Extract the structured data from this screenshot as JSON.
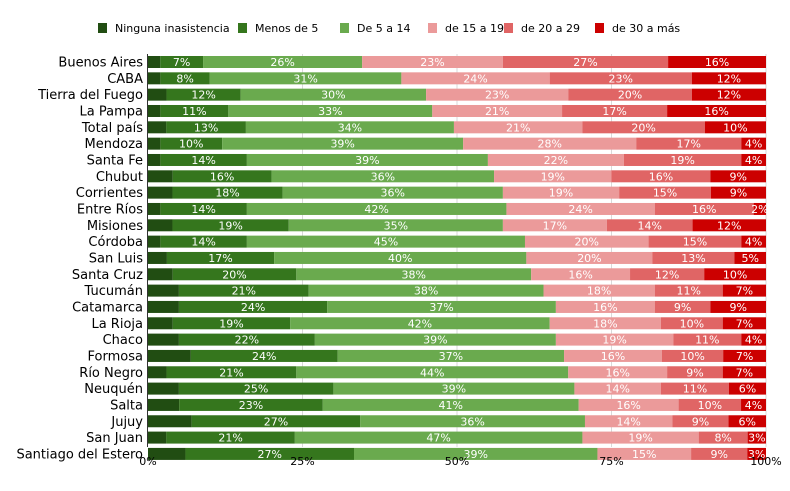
{
  "chart_data": {
    "type": "bar",
    "orientation": "horizontal",
    "stacked": "percent",
    "legend_position": "top",
    "grid": true,
    "xlim": [
      0,
      100
    ],
    "x_ticks": [
      "0%",
      "25%",
      "50%",
      "75%",
      "100%"
    ],
    "series_names": [
      "Ninguna inasistencia",
      "Menos de 5",
      "De 5 a 14",
      "de 15 a 19",
      "de 20 a 29",
      "de 30 a más"
    ],
    "colors": [
      "#214d12",
      "#35761d",
      "#6aaa4e",
      "#eb9a9a",
      "#e06565",
      "#cc0000"
    ],
    "categories": [
      "Buenos Aires",
      "CABA",
      "Tierra del Fuego",
      "La Pampa",
      "Total país",
      "Mendoza",
      "Santa Fe",
      "Chubut",
      "Corrientes",
      "Entre Ríos",
      "Misiones",
      "Córdoba",
      "San Luis",
      "Santa Cruz",
      "Tucumán",
      "Catamarca",
      "La Rioja",
      "Chaco",
      "Formosa",
      "Río Negro",
      "Neuquén",
      "Salta",
      "Jujuy",
      "San Juan",
      "Santiago del Estero"
    ],
    "values": [
      [
        2,
        7,
        26,
        23,
        27,
        16
      ],
      [
        2,
        8,
        31,
        24,
        23,
        12
      ],
      [
        3,
        12,
        30,
        23,
        20,
        12
      ],
      [
        2,
        11,
        33,
        21,
        17,
        16
      ],
      [
        3,
        13,
        34,
        21,
        20,
        10
      ],
      [
        2,
        10,
        39,
        28,
        17,
        4
      ],
      [
        2,
        14,
        39,
        22,
        19,
        4
      ],
      [
        4,
        16,
        36,
        19,
        16,
        9
      ],
      [
        4,
        18,
        36,
        19,
        15,
        9
      ],
      [
        2,
        14,
        42,
        24,
        16,
        2
      ],
      [
        4,
        19,
        35,
        17,
        14,
        12
      ],
      [
        2,
        14,
        45,
        20,
        15,
        4
      ],
      [
        3,
        17,
        40,
        20,
        13,
        5
      ],
      [
        4,
        20,
        38,
        16,
        12,
        10
      ],
      [
        5,
        21,
        38,
        18,
        11,
        7
      ],
      [
        5,
        24,
        37,
        16,
        9,
        9
      ],
      [
        4,
        19,
        42,
        18,
        10,
        7
      ],
      [
        5,
        22,
        39,
        19,
        11,
        4
      ],
      [
        7,
        24,
        37,
        16,
        10,
        7
      ],
      [
        3,
        21,
        44,
        16,
        9,
        7
      ],
      [
        5,
        25,
        39,
        14,
        11,
        6
      ],
      [
        5,
        23,
        41,
        16,
        10,
        4
      ],
      [
        7,
        27,
        36,
        14,
        9,
        6
      ],
      [
        3,
        21,
        47,
        19,
        8,
        3
      ],
      [
        6,
        27,
        39,
        15,
        9,
        3
      ]
    ],
    "labeled_series": [
      1,
      2,
      3,
      4,
      5
    ]
  }
}
